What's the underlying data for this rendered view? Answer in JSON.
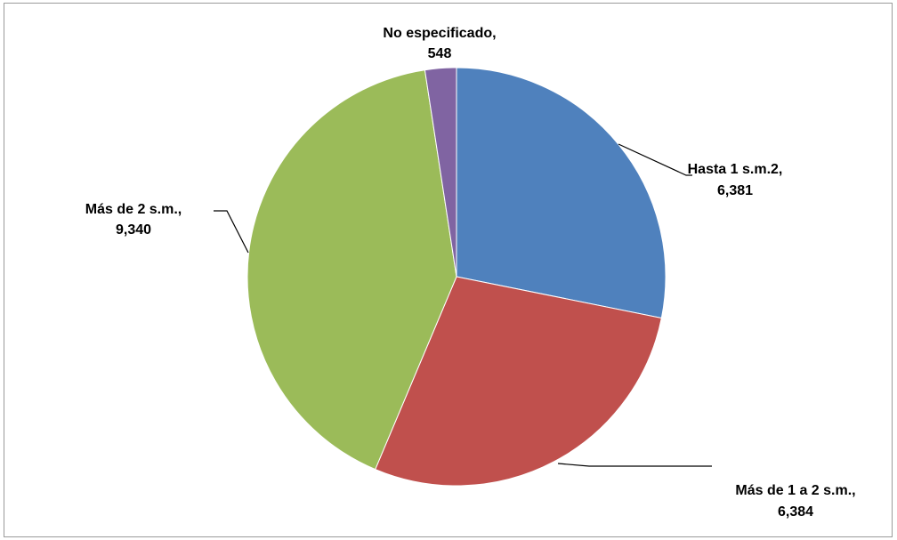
{
  "chart_data": {
    "type": "pie",
    "title": "",
    "start_angle_deg": -90,
    "direction": "clockwise",
    "slices": [
      {
        "label": "Hasta 1 s.m.2",
        "value_text": "6,381",
        "value": 6381,
        "color": "#4F81BD"
      },
      {
        "label": "Más de 1 a 2 s.m.",
        "value_text": "6,384",
        "value": 6384,
        "color": "#C0504D"
      },
      {
        "label": "Más de 2 s.m.",
        "value_text": "9,340",
        "value": 9340,
        "color": "#9BBB59"
      },
      {
        "label": "No especificado",
        "value_text": "548",
        "value": 548,
        "color": "#8064A2"
      }
    ],
    "label_format": "{label},\n{value}",
    "leader_line_color": "#000000",
    "border_color": "#9A9A9A"
  }
}
